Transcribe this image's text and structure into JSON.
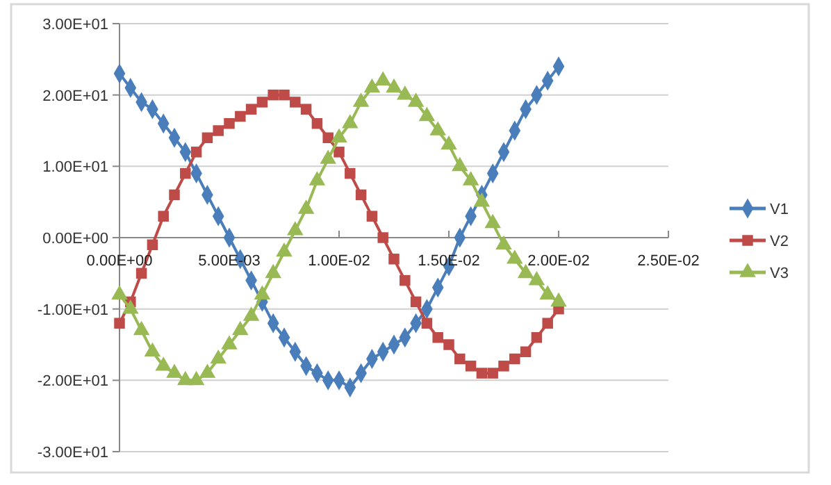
{
  "chart_data": {
    "type": "line",
    "legend": "right",
    "grid": "y",
    "x": [
      0,
      0.0005,
      0.001,
      0.0015,
      0.002,
      0.0025,
      0.003,
      0.0035,
      0.004,
      0.0045,
      0.005,
      0.0055,
      0.006,
      0.0065,
      0.007,
      0.0075,
      0.008,
      0.0085,
      0.009,
      0.0095,
      0.01,
      0.0105,
      0.011,
      0.0115,
      0.012,
      0.0125,
      0.013,
      0.0135,
      0.014,
      0.0145,
      0.015,
      0.0155,
      0.016,
      0.0165,
      0.017,
      0.0175,
      0.018,
      0.0185,
      0.019,
      0.0195,
      0.02
    ],
    "xlim": [
      0,
      0.025
    ],
    "xticks": [
      {
        "value": 0,
        "label": "0.00E+00"
      },
      {
        "value": 0.005,
        "label": "5.00E-03"
      },
      {
        "value": 0.01,
        "label": "1.00E-02"
      },
      {
        "value": 0.015,
        "label": "1.50E-02"
      },
      {
        "value": 0.02,
        "label": "2.00E-02"
      },
      {
        "value": 0.025,
        "label": "2.50E-02"
      }
    ],
    "ylim": [
      -30,
      30
    ],
    "yticks": [
      {
        "value": -30,
        "label": "-3.00E+01"
      },
      {
        "value": -20,
        "label": "-2.00E+01"
      },
      {
        "value": -10,
        "label": "-1.00E+01"
      },
      {
        "value": 0,
        "label": "0.00E+00"
      },
      {
        "value": 10,
        "label": "1.00E+01"
      },
      {
        "value": 20,
        "label": "2.00E+01"
      },
      {
        "value": 30,
        "label": "3.00E+01"
      }
    ],
    "series": [
      {
        "name": "V1",
        "color": "#4a7ebb",
        "marker": "diamond",
        "values": [
          23,
          21,
          19,
          18,
          16,
          14,
          12,
          9,
          6,
          3,
          0,
          -3,
          -6,
          -9,
          -12,
          -14,
          -16,
          -18,
          -19,
          -20,
          -20,
          -21,
          -19,
          -17,
          -16,
          -15,
          -14,
          -12,
          -10,
          -7,
          -4,
          0,
          3,
          6,
          9,
          12,
          15,
          18,
          20,
          22,
          24
        ]
      },
      {
        "name": "V2",
        "color": "#be4b48",
        "marker": "square",
        "values": [
          -12,
          -9,
          -5,
          -1,
          3,
          6,
          9,
          12,
          14,
          15,
          16,
          17,
          18,
          19,
          20,
          20,
          19,
          18,
          16,
          14,
          12,
          9,
          6,
          3,
          0,
          -3,
          -6,
          -9,
          -12,
          -14,
          -15,
          -17,
          -18,
          -19,
          -19,
          -18,
          -17,
          -16,
          -14,
          -12,
          -10
        ]
      },
      {
        "name": "V3",
        "color": "#98b954",
        "marker": "triangle",
        "values": [
          -8,
          -10,
          -13,
          -16,
          -18,
          -19,
          -20,
          -20,
          -19,
          -17,
          -15,
          -13,
          -11,
          -8,
          -5,
          -2,
          1,
          4,
          8,
          11,
          14,
          16,
          19,
          21,
          22,
          21,
          20,
          19,
          17,
          15,
          13,
          10,
          8,
          5,
          2,
          -1,
          -3,
          -5,
          -6,
          -8,
          -9
        ]
      }
    ]
  }
}
